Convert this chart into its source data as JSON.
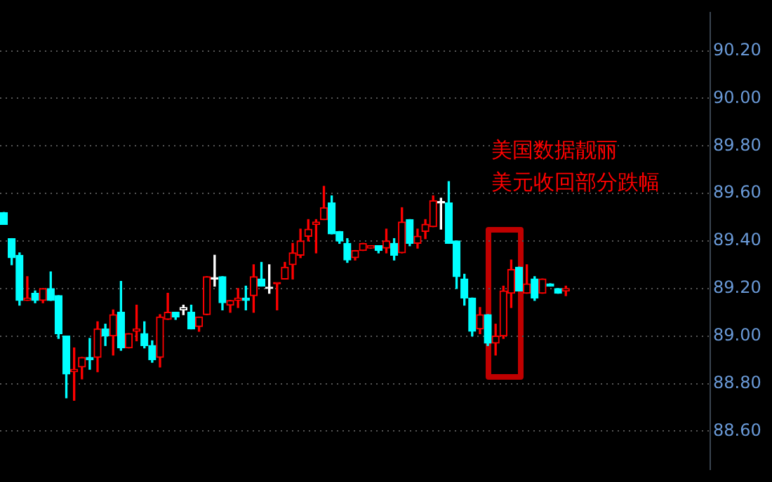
{
  "chart_data": {
    "type": "candlestick",
    "categories": [
      null,
      null,
      null,
      null,
      null,
      null,
      null,
      null,
      null,
      null,
      null,
      null,
      null,
      null,
      null,
      null,
      null,
      null,
      null,
      null,
      null,
      null,
      null,
      null,
      null,
      null,
      null,
      null,
      null,
      null,
      null,
      null,
      null,
      null,
      null,
      null,
      null,
      null,
      null,
      null,
      null,
      null,
      null,
      null,
      null,
      null,
      null,
      null,
      null,
      null,
      null,
      null,
      null,
      null,
      null,
      null,
      null,
      null,
      null,
      null,
      null,
      null,
      null,
      null,
      null,
      null,
      null,
      null,
      null,
      null,
      null,
      null,
      null,
      null,
      null,
      null,
      null,
      null,
      null,
      null,
      null,
      null,
      null,
      null,
      null,
      null,
      null,
      null,
      null,
      null,
      null
    ],
    "ohlc": [
      [
        89.52,
        89.52,
        89.47,
        89.47
      ],
      [
        89.41,
        89.41,
        89.3,
        89.33
      ],
      [
        89.34,
        89.35,
        89.13,
        89.15
      ],
      [
        89.15,
        89.25,
        89.15,
        89.16
      ],
      [
        89.18,
        89.19,
        89.14,
        89.15
      ],
      [
        89.15,
        89.2,
        89.14,
        89.2
      ],
      [
        89.2,
        89.27,
        89.15,
        89.15
      ],
      [
        89.17,
        89.17,
        88.99,
        89.01
      ],
      [
        89.0,
        89.0,
        88.74,
        88.84
      ],
      [
        88.85,
        88.95,
        88.73,
        88.86
      ],
      [
        88.87,
        88.91,
        88.82,
        88.91
      ],
      [
        88.91,
        88.99,
        88.86,
        88.9
      ],
      [
        88.91,
        89.06,
        88.85,
        89.03
      ],
      [
        89.03,
        89.05,
        88.96,
        89.0
      ],
      [
        89.0,
        89.11,
        88.92,
        89.09
      ],
      [
        89.1,
        89.23,
        88.94,
        88.95
      ],
      [
        88.95,
        89.01,
        88.95,
        89.01
      ],
      [
        89.02,
        89.13,
        88.98,
        89.03
      ],
      [
        89.01,
        89.06,
        88.95,
        88.96
      ],
      [
        88.96,
        88.98,
        88.89,
        88.9
      ],
      [
        88.91,
        89.09,
        88.87,
        89.08
      ],
      [
        89.07,
        89.18,
        89.07,
        89.1
      ],
      [
        89.1,
        89.1,
        89.07,
        89.08
      ],
      [
        89.11,
        89.13,
        89.09,
        89.12
      ],
      [
        89.1,
        89.13,
        89.03,
        89.03
      ],
      [
        89.04,
        89.08,
        89.02,
        89.08
      ],
      [
        89.09,
        89.25,
        89.09,
        89.25
      ],
      [
        89.24,
        89.34,
        89.21,
        89.24
      ],
      [
        89.25,
        89.25,
        89.11,
        89.14
      ],
      [
        89.13,
        89.15,
        89.1,
        89.15
      ],
      [
        89.15,
        89.2,
        89.12,
        89.16
      ],
      [
        89.16,
        89.21,
        89.11,
        89.15
      ],
      [
        89.17,
        89.3,
        89.1,
        89.25
      ],
      [
        89.24,
        89.31,
        89.21,
        89.21
      ],
      [
        89.2,
        89.3,
        89.18,
        89.2
      ],
      [
        89.22,
        89.22,
        89.11,
        89.22
      ],
      [
        89.24,
        89.31,
        89.24,
        89.29
      ],
      [
        89.3,
        89.39,
        89.24,
        89.35
      ],
      [
        89.34,
        89.45,
        89.33,
        89.4
      ],
      [
        89.42,
        89.49,
        89.4,
        89.45
      ],
      [
        89.47,
        89.49,
        89.35,
        89.48
      ],
      [
        89.49,
        89.63,
        89.49,
        89.54
      ],
      [
        89.56,
        89.59,
        89.43,
        89.43
      ],
      [
        89.44,
        89.44,
        89.39,
        89.4
      ],
      [
        89.39,
        89.41,
        89.31,
        89.32
      ],
      [
        89.33,
        89.36,
        89.32,
        89.36
      ],
      [
        89.36,
        89.39,
        89.36,
        89.39
      ],
      [
        89.37,
        89.38,
        89.37,
        89.38
      ],
      [
        89.38,
        89.38,
        89.35,
        89.36
      ],
      [
        89.37,
        89.45,
        89.35,
        89.4
      ],
      [
        89.39,
        89.41,
        89.32,
        89.34
      ],
      [
        89.35,
        89.54,
        89.35,
        89.48
      ],
      [
        89.49,
        89.49,
        89.38,
        89.39
      ],
      [
        89.39,
        89.45,
        89.37,
        89.42
      ],
      [
        89.44,
        89.49,
        89.41,
        89.47
      ],
      [
        89.46,
        89.59,
        89.46,
        89.57
      ],
      [
        89.56,
        89.58,
        89.45,
        89.56
      ],
      [
        89.56,
        89.65,
        89.39,
        89.39
      ],
      [
        89.4,
        89.4,
        89.2,
        89.25
      ],
      [
        89.24,
        89.26,
        89.13,
        89.16
      ],
      [
        89.16,
        89.16,
        89.0,
        89.02
      ],
      [
        89.03,
        89.12,
        89.01,
        89.09
      ],
      [
        89.09,
        89.09,
        88.96,
        88.97
      ],
      [
        88.97,
        89.05,
        88.92,
        89.0
      ],
      [
        89.0,
        89.21,
        88.99,
        89.19
      ],
      [
        89.18,
        89.32,
        89.12,
        89.28
      ],
      [
        89.29,
        89.29,
        89.19,
        89.19
      ],
      [
        89.18,
        89.3,
        89.18,
        89.22
      ],
      [
        89.24,
        89.25,
        89.15,
        89.16
      ],
      [
        89.18,
        89.24,
        89.18,
        89.24
      ],
      [
        89.22,
        89.22,
        89.21,
        89.21
      ],
      [
        89.2,
        89.2,
        89.18,
        89.18
      ],
      [
        89.19,
        89.21,
        89.17,
        89.2
      ],
      null,
      null,
      null,
      null,
      null,
      null,
      null,
      null,
      null,
      null,
      null,
      null,
      null,
      null,
      null,
      null,
      null,
      null
    ],
    "colors": [
      "#00ffff",
      "#00ffff",
      "#00ffff",
      "#ff0000",
      "#00ffff",
      "#ff0000",
      "#00ffff",
      "#00ffff",
      "#00ffff",
      "#ff0000",
      "#ff0000",
      "#00ffff",
      "#ff0000",
      "#00ffff",
      "#ff0000",
      "#00ffff",
      "#ff0000",
      "#ff0000",
      "#00ffff",
      "#00ffff",
      "#ff0000",
      "#ff0000",
      "#00ffff",
      "#ffffff",
      "#00ffff",
      "#ff0000",
      "#ff0000",
      "#ffffff",
      "#00ffff",
      "#ff0000",
      "#ff0000",
      "#00ffff",
      "#ff0000",
      "#00ffff",
      "#ffffff",
      "#ff0000",
      "#ff0000",
      "#ff0000",
      "#ff0000",
      "#ff0000",
      "#ff0000",
      "#ff0000",
      "#00ffff",
      "#00ffff",
      "#00ffff",
      "#ff0000",
      "#ff0000",
      "#ff0000",
      "#00ffff",
      "#ff0000",
      "#00ffff",
      "#ff0000",
      "#00ffff",
      "#ff0000",
      "#ff0000",
      "#ff0000",
      "#ffffff",
      "#00ffff",
      "#00ffff",
      "#00ffff",
      "#00ffff",
      "#ff0000",
      "#00ffff",
      "#ff0000",
      "#ff0000",
      "#ff0000",
      "#00ffff",
      "#ff0000",
      "#00ffff",
      "#ff0000",
      "#00ffff",
      "#00ffff",
      "#ff0000",
      null,
      null,
      null,
      null,
      null,
      null,
      null,
      null,
      null,
      null,
      null,
      null,
      null,
      null,
      null,
      null,
      null,
      null
    ],
    "ylim": [
      88.44,
      90.36
    ],
    "yticks": [
      {
        "value": 88.6,
        "label": "88.60"
      },
      {
        "value": 88.8,
        "label": "88.80"
      },
      {
        "value": 89.0,
        "label": "89.00"
      },
      {
        "value": 89.2,
        "label": "89.20"
      },
      {
        "value": 89.4,
        "label": "89.40"
      },
      {
        "value": 89.6,
        "label": "89.60"
      },
      {
        "value": 89.8,
        "label": "89.80"
      },
      {
        "value": 90.0,
        "label": "90.00"
      },
      {
        "value": 90.2,
        "label": "90.20"
      }
    ],
    "grid": "y",
    "tick_labels": "y",
    "annotations": [
      "美国数据靓丽",
      "美元收回部分跌幅"
    ]
  }
}
